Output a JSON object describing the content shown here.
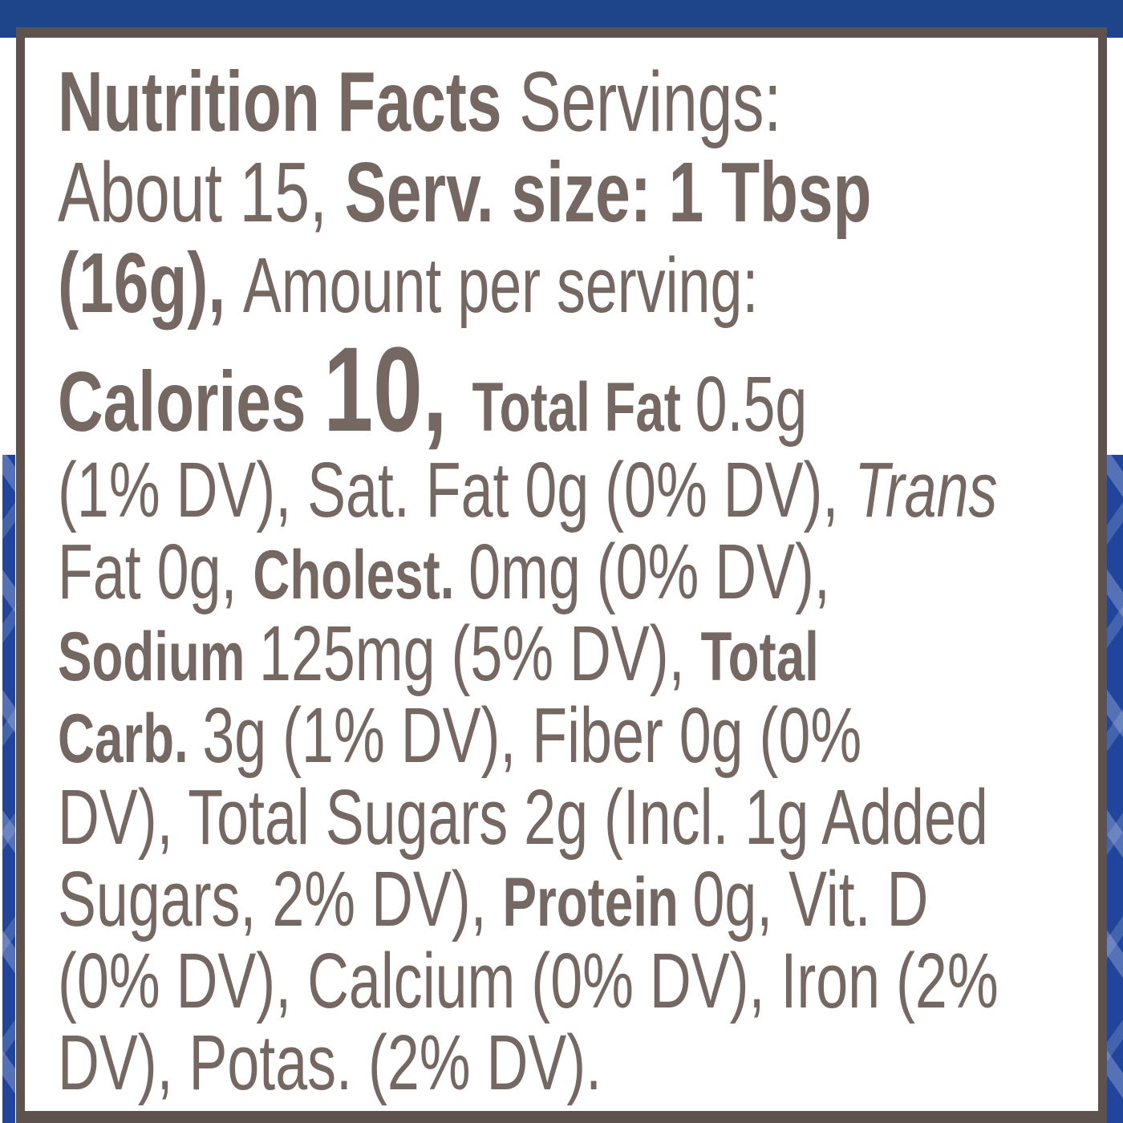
{
  "colors": {
    "navy": "#1e448a",
    "strip": "#21459b",
    "strip_highlight": "#6f82b9",
    "frame": "#5d524e",
    "ink": "#756862",
    "panel_bg": "#ffffff"
  },
  "nutrition": {
    "servings": "About 15",
    "serving_size": "1 Tbsp (16g)",
    "calories": "10",
    "total_fat": "0.5g (1% DV)",
    "saturated_fat": "0g (0% DV)",
    "trans_fat": "0g",
    "cholesterol": "0mg (0% DV)",
    "sodium": "125mg (5% DV)",
    "total_carbohydrate": "3g (1% DV)",
    "fiber": "0g (0% DV)",
    "total_sugars": "2g",
    "added_sugars": "1g (2% DV)",
    "protein": "0g",
    "vitamin_d": "0% DV",
    "calcium": "0% DV",
    "iron": "2% DV",
    "potassium": "2% DV"
  },
  "panel": {
    "lines": [
      {
        "segments": [
          {
            "text": "Nutrition Facts",
            "style": "bold-xl"
          },
          {
            "text": " Servings:",
            "style": "regular-xl"
          }
        ]
      },
      {
        "segments": [
          {
            "text": "About 15, ",
            "style": "regular-xl"
          },
          {
            "text": "Serv. size: 1 Tbsp",
            "style": "bold-xl"
          }
        ]
      },
      {
        "segments": [
          {
            "text": "(16g), ",
            "style": "bold-xl"
          },
          {
            "text": "Amount per serving:",
            "style": "regular-body"
          }
        ]
      },
      {
        "segments": [
          {
            "text": "Calories ",
            "style": "bold-xl"
          },
          {
            "text": "10, ",
            "style": "bold-xxl"
          },
          {
            "text": "Total Fat ",
            "style": "bold-body"
          },
          {
            "text": "0.5g",
            "style": "regular-body"
          }
        ]
      },
      {
        "segments": [
          {
            "text": "(1% DV), Sat. Fat 0g (0% DV), ",
            "style": "regular-body"
          },
          {
            "text": "Trans",
            "style": "italic-body"
          }
        ]
      },
      {
        "segments": [
          {
            "text": "Fat 0g, ",
            "style": "regular-body"
          },
          {
            "text": "Cholest. ",
            "style": "bold-body"
          },
          {
            "text": "0mg (0% DV),",
            "style": "regular-body"
          }
        ]
      },
      {
        "segments": [
          {
            "text": "Sodium ",
            "style": "bold-body"
          },
          {
            "text": "125mg (5% DV), ",
            "style": "regular-body"
          },
          {
            "text": "Total",
            "style": "bold-body"
          }
        ]
      },
      {
        "segments": [
          {
            "text": "Carb. ",
            "style": "bold-body"
          },
          {
            "text": "3g (1% DV), Fiber 0g (0%",
            "style": "regular-body"
          }
        ]
      },
      {
        "segments": [
          {
            "text": "DV), Total Sugars 2g (Incl. 1g Added",
            "style": "regular-body"
          }
        ]
      },
      {
        "segments": [
          {
            "text": "Sugars, 2% DV), ",
            "style": "regular-body"
          },
          {
            "text": "Protein ",
            "style": "bold-body"
          },
          {
            "text": "0g, Vit. D",
            "style": "regular-body"
          }
        ]
      },
      {
        "segments": [
          {
            "text": "(0% DV), Calcium (0% DV), Iron (2%",
            "style": "regular-body"
          }
        ]
      },
      {
        "segments": [
          {
            "text": "DV), Potas. (2% DV).",
            "style": "regular-body"
          }
        ]
      }
    ]
  }
}
